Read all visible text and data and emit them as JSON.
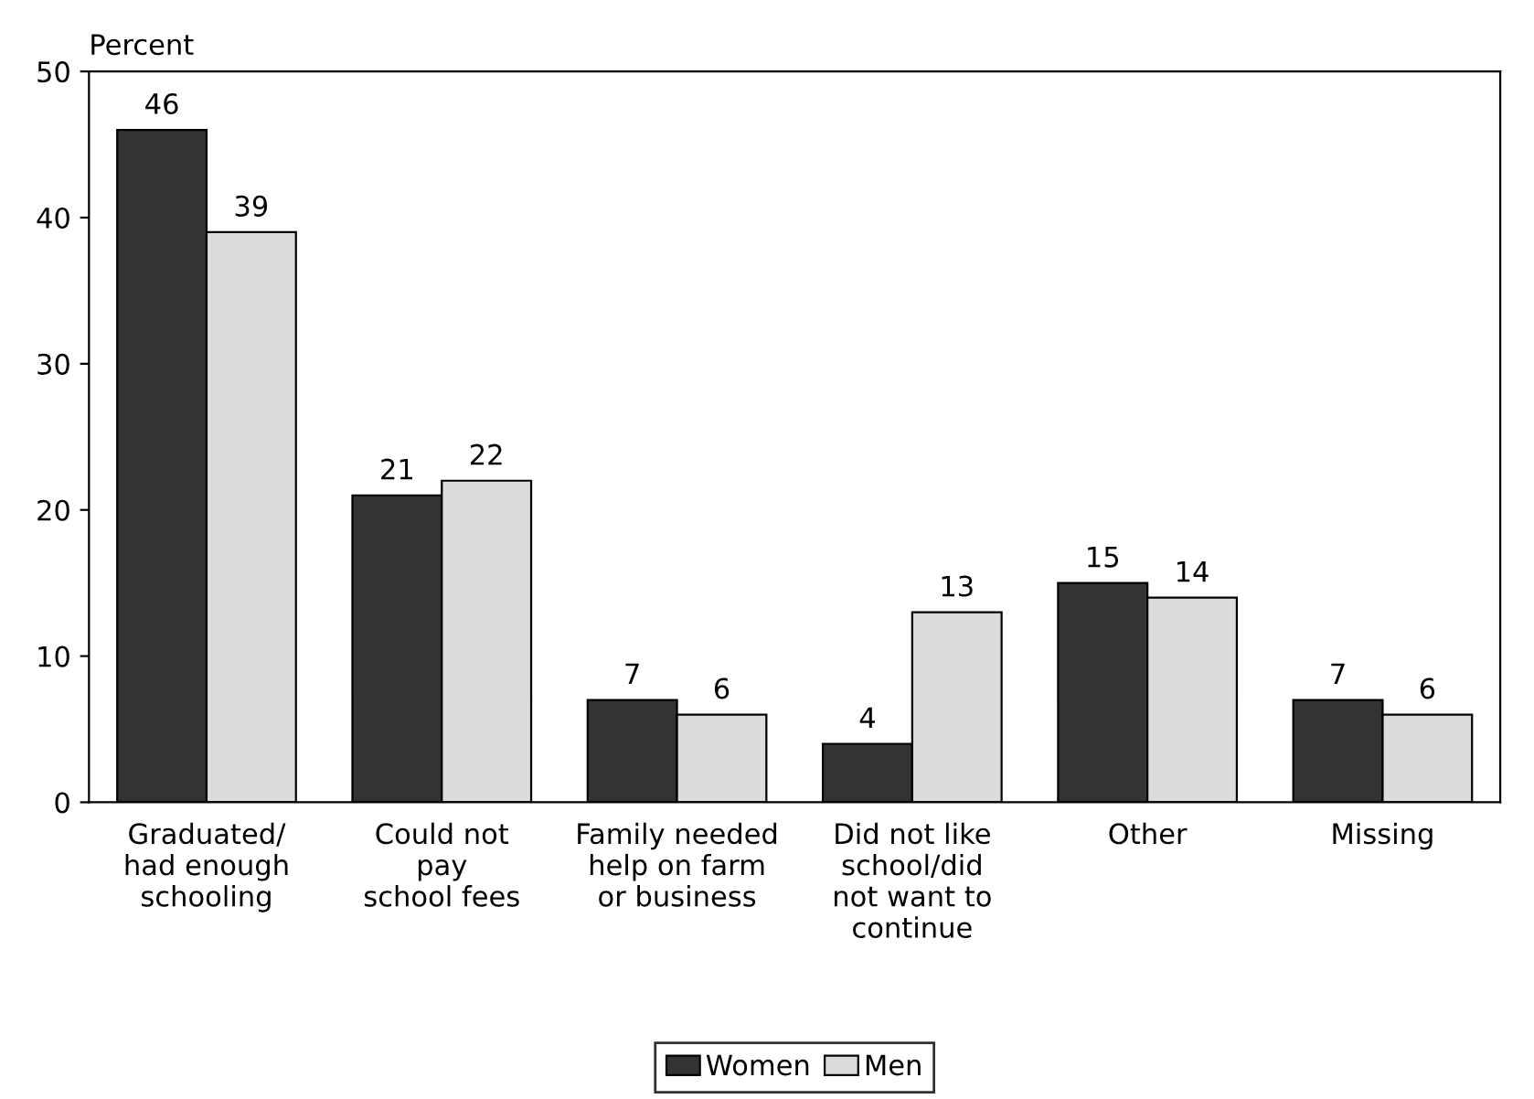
{
  "chart_data": {
    "type": "bar",
    "ylabel": "Percent",
    "categories": [
      "Graduated/\nhad enough\nschooling",
      "Could not\npay\nschool fees",
      "Family needed\nhelp on farm\nor business",
      "Did not like\nschool/did\nnot want to\ncontinue",
      "Other",
      "Missing"
    ],
    "series": [
      {
        "name": "Women",
        "color": "#333333",
        "values": [
          46,
          21,
          7,
          4,
          15,
          7
        ]
      },
      {
        "name": "Men",
        "color": "#dcdcdc",
        "values": [
          39,
          22,
          6,
          13,
          14,
          6
        ]
      }
    ],
    "ylim": [
      0,
      50
    ],
    "yticks": [
      0,
      10,
      20,
      30,
      40,
      50
    ],
    "grid": false,
    "legend": "bottom",
    "data_labels": true
  }
}
